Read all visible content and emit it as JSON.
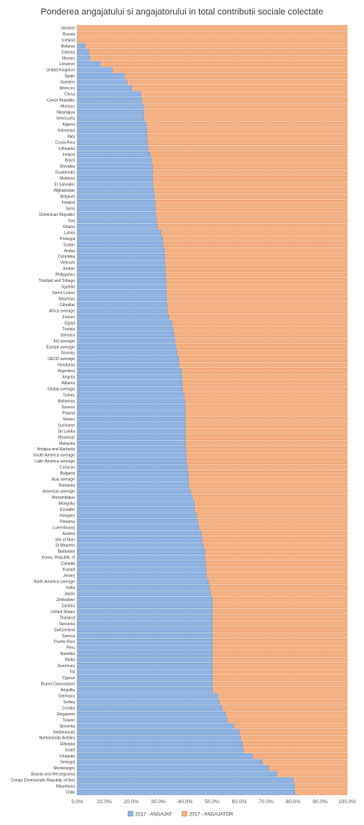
{
  "chart_data": {
    "type": "bar",
    "orientation": "horizontal",
    "stacked": true,
    "title": "Ponderea angajatului si angajatorului in total contributii sociale colectate",
    "xlim": [
      0,
      100
    ],
    "x_ticks": [
      "0.0%",
      "10.0%",
      "20.0%",
      "30.0%",
      "40.0%",
      "50.0%",
      "60.0%",
      "70.0%",
      "80.0%",
      "90.0%",
      "100.0%"
    ],
    "grid": true,
    "legend_position": "bottom",
    "colors": {
      "employee": "#8fb3e3",
      "employee_edge": "#4f81bd",
      "employer": "#f4b183",
      "employer_edge": "#e07b39"
    },
    "series": [
      {
        "name": "2017 - ANGAJAT"
      },
      {
        "name": "2017 - ANGAJATOR"
      }
    ],
    "categories": [
      "Ukraine",
      "Russia",
      "Iceland",
      "Belarus",
      "Estonia",
      "Mexico",
      "Lebanon",
      "United Kingdom",
      "Spain",
      "Sweden",
      "Morocco",
      "China",
      "Czech Republic",
      "Monaco",
      "Nicaragua",
      "Venezuela",
      "Algeria",
      "Indonesia",
      "Italy",
      "Costa Rica",
      "Lithuania",
      "Ireland",
      "Brazil",
      "Slovakia",
      "Guatemala",
      "Moldova",
      "El Salvador",
      "Afghanistan",
      "Belgium",
      "Finland",
      "Syria",
      "Dominican Republic",
      "Iraq",
      "Ghana",
      "Latvia",
      "Portugal",
      "Sudan",
      "Aruba",
      "Colombia",
      "Vietnam",
      "Jordan",
      "Philippines",
      "Trinidad and Tobago",
      "Uganda",
      "Sierra Leone",
      "Mauritius",
      "Gibraltar",
      "Africa average",
      "France",
      "Egypt",
      "Tunisia",
      "Jamaica",
      "EU average",
      "Europe average",
      "Norway",
      "OECD average",
      "Honduras",
      "Argentina",
      "Angola",
      "Albania",
      "Global average",
      "Turkey",
      "Bahamas",
      "Greece",
      "Poland",
      "Yemen",
      "Suriname",
      "Sri Lanka",
      "Myanmar",
      "Malaysia",
      "Antigua and Barbuda",
      "South America average",
      "Latin America average",
      "Curacao",
      "Bulgaria",
      "Asia average",
      "Romania",
      "Americas average",
      "Mozambique",
      "Mongolia",
      "Ecuador",
      "Hungary",
      "Panama",
      "Luxembourg",
      "Austria",
      "Isle of Man",
      "St Maarten",
      "Barbados",
      "Korea, Republic of",
      "Canada",
      "Kuwait",
      "Jersey",
      "North America average",
      "India",
      "Japan",
      "Zimbabwe",
      "Zambia",
      "United States",
      "Thailand",
      "Tanzania",
      "Switzerland",
      "Samoa",
      "Puerto Rico",
      "Peru",
      "Namibia",
      "Malta",
      "Guernsey",
      "Fiji",
      "Cyprus",
      "Brunei Darussalam",
      "Anguilla",
      "Germany",
      "Serbia",
      "Croatia",
      "Singapore",
      "Taiwan",
      "Slovenia",
      "Netherlands",
      "Netherlands Antilles",
      "Ethiopia",
      "Israel",
      "Uruguay",
      "Senegal",
      "Montenegro",
      "Bosnia and Herzegovina",
      "Congo (Democratic Republic of the)",
      "Mauritania",
      "Chile"
    ],
    "employee_share": [
      0,
      0,
      0,
      2.8,
      4.2,
      4.6,
      8.4,
      12.9,
      17.4,
      18.4,
      20.2,
      23.5,
      23.8,
      24.5,
      24.6,
      24.7,
      25.5,
      25.7,
      25.8,
      26.0,
      26.2,
      27.0,
      27.5,
      27.8,
      27.9,
      27.9,
      28.0,
      28.3,
      28.6,
      28.8,
      28.9,
      29.0,
      29.3,
      29.6,
      30.9,
      31.5,
      31.8,
      32.2,
      32.4,
      32.5,
      32.6,
      32.7,
      32.8,
      32.9,
      33.0,
      33.1,
      33.2,
      33.3,
      33.9,
      35.0,
      35.5,
      35.8,
      36.2,
      36.5,
      37.0,
      37.5,
      37.8,
      38.5,
      38.7,
      38.8,
      39.0,
      39.5,
      39.8,
      40.0,
      40.0,
      40.0,
      40.0,
      40.0,
      40.0,
      40.0,
      40.1,
      40.3,
      40.4,
      40.8,
      41.0,
      41.2,
      41.3,
      41.9,
      42.6,
      43.3,
      43.5,
      44.0,
      44.6,
      45.0,
      46.0,
      46.2,
      46.7,
      47.3,
      47.3,
      47.5,
      47.7,
      47.9,
      48.5,
      49.0,
      49.4,
      50.0,
      50.0,
      50.0,
      50.0,
      50.0,
      50.0,
      50.0,
      50.0,
      50.0,
      50.0,
      50.0,
      50.0,
      50.0,
      50.0,
      50.0,
      50.0,
      52.0,
      52.6,
      53.5,
      55.0,
      55.5,
      58.0,
      60.0,
      60.5,
      61.2,
      61.5,
      64.9,
      68.5,
      71.0,
      74.0,
      80.0,
      80.5,
      80.6
    ]
  }
}
